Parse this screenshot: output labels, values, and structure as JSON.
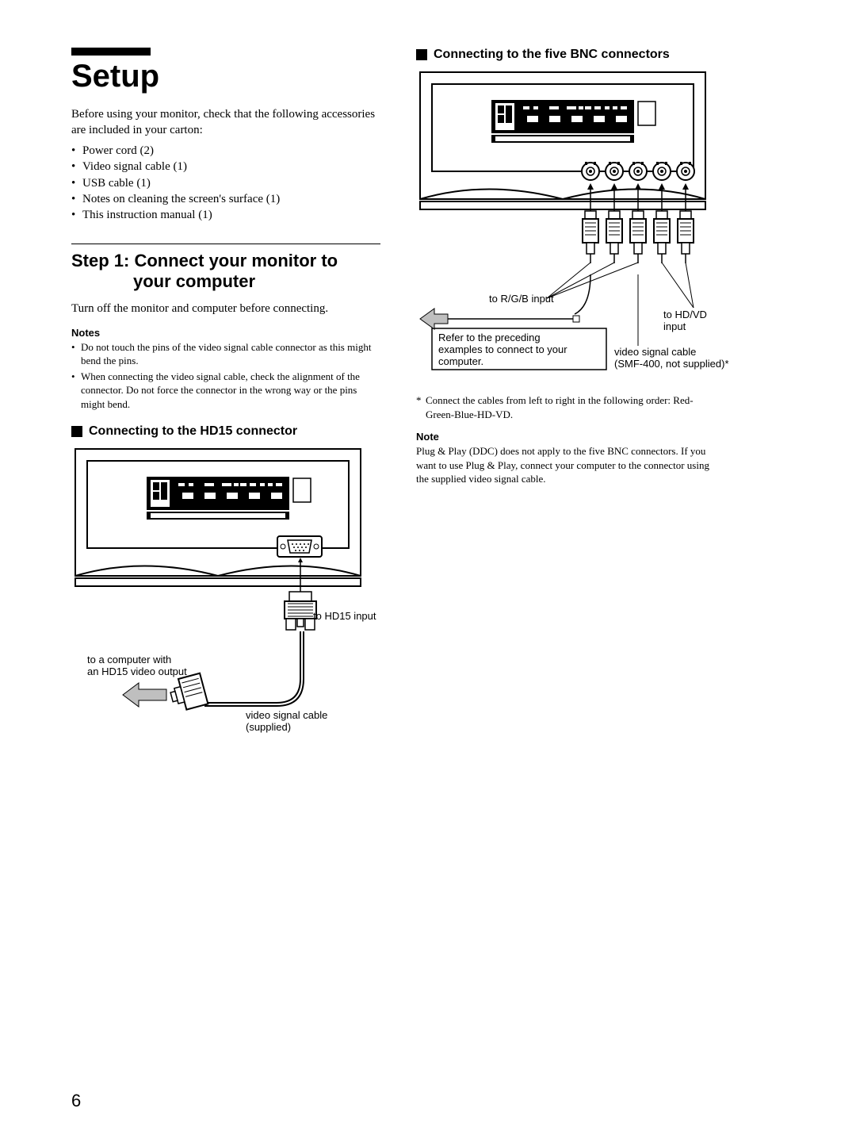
{
  "page_number": "6",
  "title_bar_width": 100,
  "main_title": "Setup",
  "intro": "Before using your monitor, check that the following accessories are included in your carton:",
  "accessories": [
    "Power cord (2)",
    "Video signal cable (1)",
    "USB cable (1)",
    "Notes on cleaning the screen's surface (1)",
    "This instruction manual (1)"
  ],
  "step1": {
    "heading_line1": "Step 1: Connect your monitor to",
    "heading_line2": "your computer",
    "body": "Turn off the monitor and computer before connecting.",
    "notes_label": "Notes",
    "notes": [
      "Do not touch the pins of the video signal cable connector as this might bend the pins.",
      "When connecting the video signal cable, check the alignment of the connector. Do not force the connector in the wrong way or the pins might bend."
    ]
  },
  "hd15": {
    "heading": "Connecting to the HD15 connector",
    "label_hd15_input": "to HD15 input",
    "label_computer_l1": "to a computer with",
    "label_computer_l2": "an HD15 video output",
    "label_cable_l1": "video signal cable",
    "label_cable_l2": "(supplied)"
  },
  "bnc": {
    "heading": "Connecting to the five BNC connectors",
    "label_rgb": "to R/G/B input",
    "label_hdvd_l1": "to HD/VD",
    "label_hdvd_l2": "input",
    "box_l1": "Refer to the preceding",
    "box_l2": "examples to connect to your",
    "box_l3": "computer.",
    "label_cable_l1": "video signal cable",
    "label_cable_l2": "(SMF-400, not supplied)*",
    "asterisk_note": "Connect the cables from left to right in the following order: Red-Green-Blue-HD-VD.",
    "note_label": "Note",
    "note_body": "Plug & Play (DDC) does not apply to the five BNC connectors. If you want to use Plug & Play, connect your computer to the connector using the supplied video signal cable."
  },
  "colors": {
    "black": "#000000",
    "white": "#ffffff",
    "light_gray": "#bfbfbf"
  },
  "fonts": {
    "serif": "Times New Roman",
    "sans": "Arial",
    "title_size_pt": 40,
    "step_title_pt": 22,
    "body_pt": 15,
    "small_pt": 13,
    "sub_heading_pt": 16
  }
}
